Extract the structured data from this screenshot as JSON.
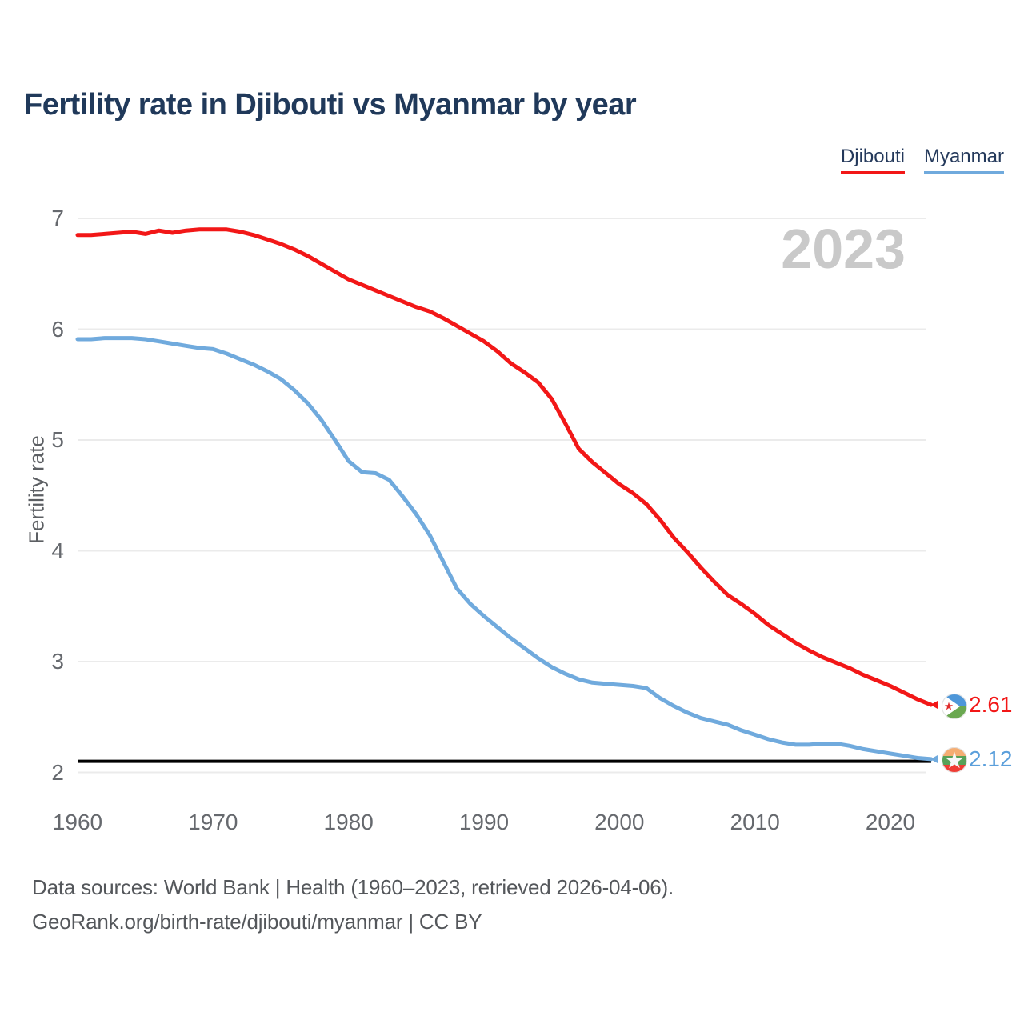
{
  "title": "Fertility rate in Djibouti vs Myanmar by year",
  "watermark": "2023",
  "legend": [
    {
      "label": "Djibouti",
      "color": "#f21717"
    },
    {
      "label": "Myanmar",
      "color": "#70aadd"
    }
  ],
  "axes": {
    "y_label": "Fertility rate",
    "y_ticks": [
      7,
      6,
      5,
      4,
      3,
      2
    ],
    "x_ticks": [
      1960,
      1970,
      1980,
      1990,
      2000,
      2010,
      2020
    ]
  },
  "end_labels": [
    {
      "series": "Djibouti",
      "value": "2.61",
      "color": "#f21717",
      "flag": "djibouti-flag-icon"
    },
    {
      "series": "Myanmar",
      "value": "2.12",
      "color": "#5b9fdb",
      "flag": "myanmar-flag-icon"
    }
  ],
  "footer": {
    "line1": "Data sources: World Bank | Health (1960–2023, retrieved 2026-04-06).",
    "line2": "GeoRank.org/birth-rate/djibouti/myanmar | CC BY"
  },
  "chart_data": {
    "type": "line",
    "title": "Fertility rate in Djibouti vs Myanmar by year",
    "xlabel": "",
    "ylabel": "Fertility rate",
    "ylim": [
      2,
      7
    ],
    "xlim": [
      1960,
      2023
    ],
    "grid": "horizontal",
    "legend_position": "top-right",
    "reference_line": {
      "value": 2.1,
      "color": "#000000",
      "meaning": "replacement fertility level"
    },
    "x": [
      1960,
      1961,
      1962,
      1963,
      1964,
      1965,
      1966,
      1967,
      1968,
      1969,
      1970,
      1971,
      1972,
      1973,
      1974,
      1975,
      1976,
      1977,
      1978,
      1979,
      1980,
      1981,
      1982,
      1983,
      1984,
      1985,
      1986,
      1987,
      1988,
      1989,
      1990,
      1991,
      1992,
      1993,
      1994,
      1995,
      1996,
      1997,
      1998,
      1999,
      2000,
      2001,
      2002,
      2003,
      2004,
      2005,
      2006,
      2007,
      2008,
      2009,
      2010,
      2011,
      2012,
      2013,
      2014,
      2015,
      2016,
      2017,
      2018,
      2019,
      2020,
      2021,
      2022,
      2023
    ],
    "series": [
      {
        "name": "Djibouti",
        "color": "#f21717",
        "end_value": 2.61,
        "values": [
          6.85,
          6.85,
          6.86,
          6.87,
          6.88,
          6.86,
          6.89,
          6.87,
          6.89,
          6.9,
          6.9,
          6.9,
          6.88,
          6.85,
          6.81,
          6.77,
          6.72,
          6.66,
          6.59,
          6.52,
          6.45,
          6.4,
          6.35,
          6.3,
          6.25,
          6.2,
          6.16,
          6.1,
          6.03,
          5.96,
          5.89,
          5.8,
          5.69,
          5.61,
          5.52,
          5.37,
          5.15,
          4.92,
          4.8,
          4.7,
          4.6,
          4.52,
          4.42,
          4.28,
          4.12,
          3.99,
          3.85,
          3.72,
          3.6,
          3.52,
          3.43,
          3.33,
          3.25,
          3.17,
          3.1,
          3.04,
          2.99,
          2.94,
          2.88,
          2.83,
          2.78,
          2.72,
          2.66,
          2.61
        ]
      },
      {
        "name": "Myanmar",
        "color": "#70aadd",
        "end_value": 2.12,
        "values": [
          5.91,
          5.91,
          5.92,
          5.92,
          5.92,
          5.91,
          5.89,
          5.87,
          5.85,
          5.83,
          5.82,
          5.78,
          5.73,
          5.68,
          5.62,
          5.55,
          5.45,
          5.33,
          5.18,
          5.0,
          4.81,
          4.71,
          4.7,
          4.64,
          4.49,
          4.33,
          4.14,
          3.9,
          3.66,
          3.52,
          3.41,
          3.31,
          3.21,
          3.12,
          3.03,
          2.95,
          2.89,
          2.84,
          2.81,
          2.8,
          2.79,
          2.78,
          2.76,
          2.67,
          2.6,
          2.54,
          2.49,
          2.46,
          2.43,
          2.38,
          2.34,
          2.3,
          2.27,
          2.25,
          2.25,
          2.26,
          2.26,
          2.24,
          2.21,
          2.19,
          2.17,
          2.15,
          2.13,
          2.12
        ]
      }
    ]
  }
}
